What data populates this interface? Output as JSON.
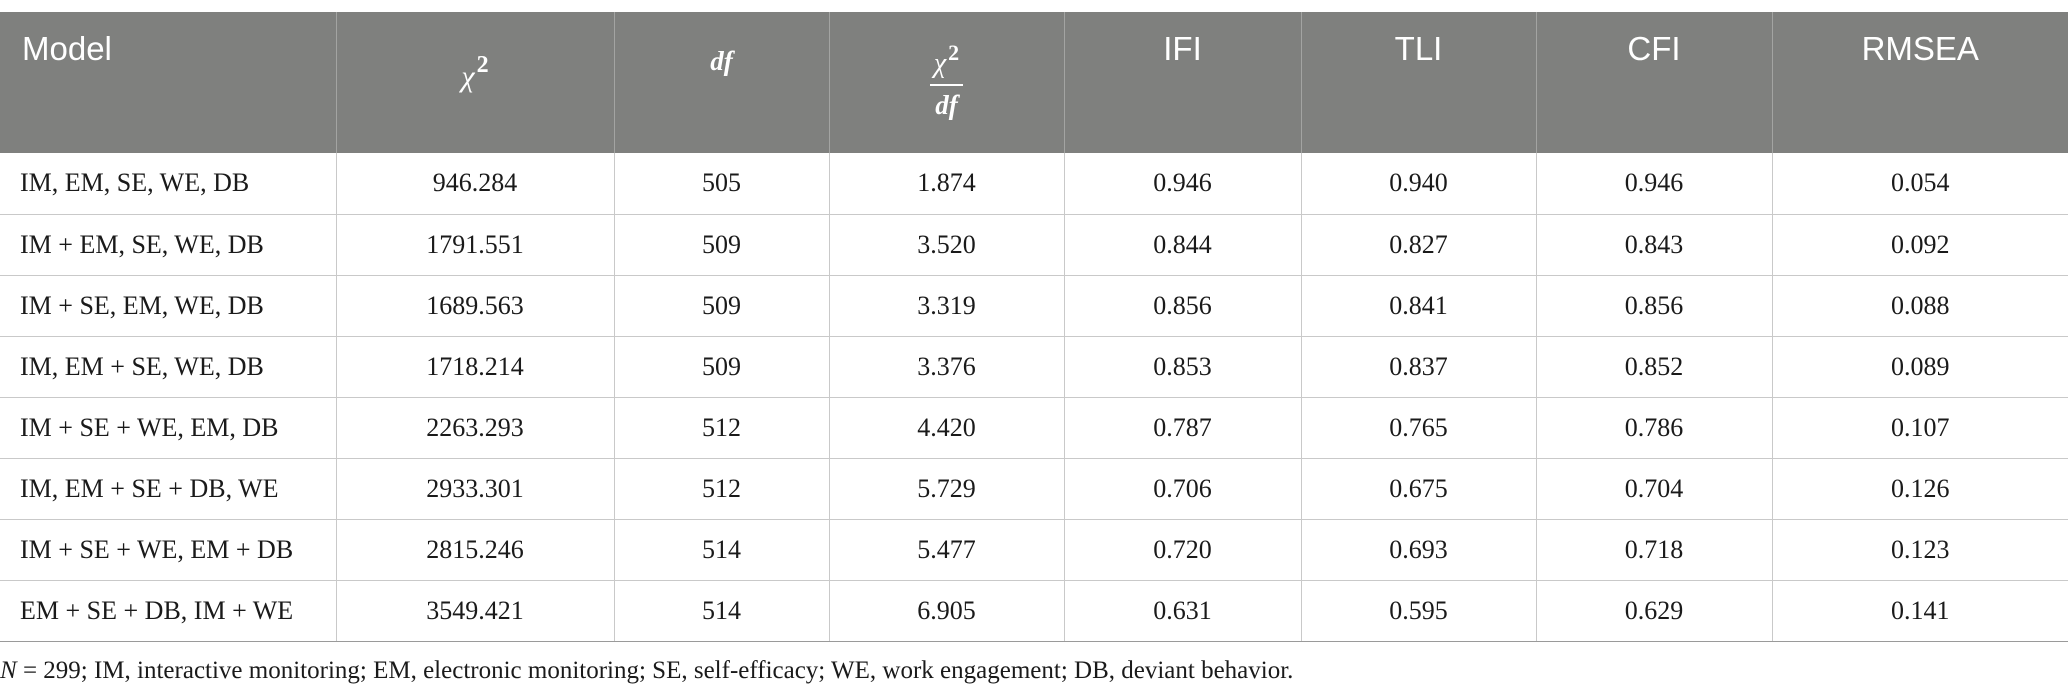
{
  "table": {
    "headers": {
      "model": "Model",
      "chi_symbol": "χ",
      "chi_power": "2",
      "df": "df",
      "ratio_num_symbol": "χ",
      "ratio_num_power": "2",
      "ratio_den": "df",
      "ifi": "IFI",
      "tli": "TLI",
      "cfi": "CFI",
      "rmsea": "RMSEA"
    },
    "rows": [
      {
        "model": "IM, EM, SE, WE, DB",
        "chi2": "946.284",
        "df": "505",
        "ratio": "1.874",
        "ifi": "0.946",
        "tli": "0.940",
        "cfi": "0.946",
        "rmsea": "0.054"
      },
      {
        "model": "IM + EM, SE, WE, DB",
        "chi2": "1791.551",
        "df": "509",
        "ratio": "3.520",
        "ifi": "0.844",
        "tli": "0.827",
        "cfi": "0.843",
        "rmsea": "0.092"
      },
      {
        "model": "IM + SE, EM, WE, DB",
        "chi2": "1689.563",
        "df": "509",
        "ratio": "3.319",
        "ifi": "0.856",
        "tli": "0.841",
        "cfi": "0.856",
        "rmsea": "0.088"
      },
      {
        "model": "IM, EM + SE, WE, DB",
        "chi2": "1718.214",
        "df": "509",
        "ratio": "3.376",
        "ifi": "0.853",
        "tli": "0.837",
        "cfi": "0.852",
        "rmsea": "0.089"
      },
      {
        "model": "IM + SE + WE, EM, DB",
        "chi2": "2263.293",
        "df": "512",
        "ratio": "4.420",
        "ifi": "0.787",
        "tli": "0.765",
        "cfi": "0.786",
        "rmsea": "0.107"
      },
      {
        "model": "IM, EM + SE + DB, WE",
        "chi2": "2933.301",
        "df": "512",
        "ratio": "5.729",
        "ifi": "0.706",
        "tli": "0.675",
        "cfi": "0.704",
        "rmsea": "0.126"
      },
      {
        "model": "IM + SE + WE, EM + DB",
        "chi2": "2815.246",
        "df": "514",
        "ratio": "5.477",
        "ifi": "0.720",
        "tli": "0.693",
        "cfi": "0.718",
        "rmsea": "0.123"
      },
      {
        "model": "EM + SE + DB, IM + WE",
        "chi2": "3549.421",
        "df": "514",
        "ratio": "6.905",
        "ifi": "0.631",
        "tli": "0.595",
        "cfi": "0.629",
        "rmsea": "0.141"
      }
    ]
  },
  "note": {
    "n_label": "N",
    "text": " = 299; IM, interactive monitoring; EM, electronic monitoring; SE, self-efficacy; WE, work engagement; DB, deviant behavior."
  },
  "colors": {
    "header_bg": "#7f807e",
    "header_text": "#ffffff",
    "grid": "#c9c9c9"
  }
}
